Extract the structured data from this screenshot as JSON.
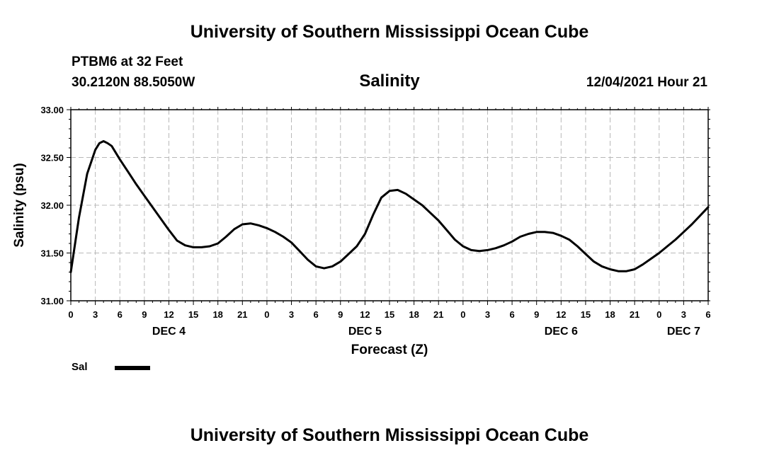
{
  "header": {
    "title_top": "University of Southern Mississippi Ocean Cube",
    "station": "PTBM6 at 32 Feet",
    "coords": "30.2120N  88.5050W",
    "subtitle": "Salinity",
    "datetime": "12/04/2021 Hour 21",
    "title_bottom": "University of Southern Mississippi Ocean Cube"
  },
  "legend": {
    "label": "Sal"
  },
  "chart_data": {
    "type": "line",
    "title": "Salinity",
    "xlabel": "Forecast (Z)",
    "ylabel": "Salinity (psu)",
    "ylim": [
      31.0,
      33.0
    ],
    "xlim": [
      0,
      78
    ],
    "grid": true,
    "y_ticks": [
      "31.00",
      "31.50",
      "32.00",
      "32.50",
      "33.00"
    ],
    "x_tick_hours": [
      0,
      3,
      6,
      9,
      12,
      15,
      18,
      21,
      24,
      27,
      30,
      33,
      36,
      39,
      42,
      45,
      48,
      51,
      54,
      57,
      60,
      63,
      66,
      69,
      72,
      75,
      78
    ],
    "x_tick_labels": [
      "0",
      "3",
      "6",
      "9",
      "12",
      "15",
      "18",
      "21",
      "0",
      "3",
      "6",
      "9",
      "12",
      "15",
      "18",
      "21",
      "0",
      "3",
      "6",
      "9",
      "12",
      "15",
      "18",
      "21",
      "0",
      "3",
      "6"
    ],
    "day_labels": [
      {
        "hour": 12,
        "label": "DEC 4"
      },
      {
        "hour": 36,
        "label": "DEC 5"
      },
      {
        "hour": 60,
        "label": "DEC 6"
      },
      {
        "hour": 75,
        "label": "DEC 7"
      }
    ],
    "series": [
      {
        "name": "Sal",
        "x": [
          0,
          1,
          2,
          3,
          3.5,
          4,
          4.5,
          5,
          6,
          7,
          8,
          9,
          10,
          11,
          12,
          13,
          14,
          15,
          16,
          17,
          18,
          19,
          20,
          21,
          22,
          23,
          24,
          25,
          26,
          27,
          28,
          29,
          30,
          31,
          32,
          33,
          34,
          35,
          36,
          37,
          38,
          39,
          40,
          41,
          42,
          43,
          44,
          45,
          46,
          47,
          48,
          49,
          50,
          51,
          52,
          53,
          54,
          55,
          56,
          57,
          58,
          59,
          60,
          61,
          62,
          63,
          64,
          65,
          66,
          67,
          68,
          69,
          70,
          71,
          72,
          73,
          74,
          75,
          76,
          77,
          78
        ],
        "values": [
          31.3,
          31.87,
          32.33,
          32.58,
          32.65,
          32.67,
          32.65,
          32.62,
          32.48,
          32.35,
          32.22,
          32.1,
          31.98,
          31.86,
          31.74,
          31.63,
          31.58,
          31.56,
          31.56,
          31.57,
          31.6,
          31.67,
          31.75,
          31.8,
          31.81,
          31.79,
          31.76,
          31.72,
          31.67,
          31.61,
          31.52,
          31.43,
          31.36,
          31.34,
          31.36,
          31.41,
          31.49,
          31.57,
          31.7,
          31.9,
          32.08,
          32.15,
          32.16,
          32.12,
          32.06,
          32.0,
          31.92,
          31.84,
          31.74,
          31.64,
          31.57,
          31.53,
          31.52,
          31.53,
          31.55,
          31.58,
          31.62,
          31.67,
          31.7,
          31.72,
          31.72,
          31.71,
          31.68,
          31.64,
          31.57,
          31.49,
          31.41,
          31.36,
          31.33,
          31.31,
          31.31,
          31.33,
          31.38,
          31.44,
          31.5,
          31.57,
          31.64,
          31.72,
          31.8,
          31.89,
          31.98
        ]
      }
    ]
  }
}
